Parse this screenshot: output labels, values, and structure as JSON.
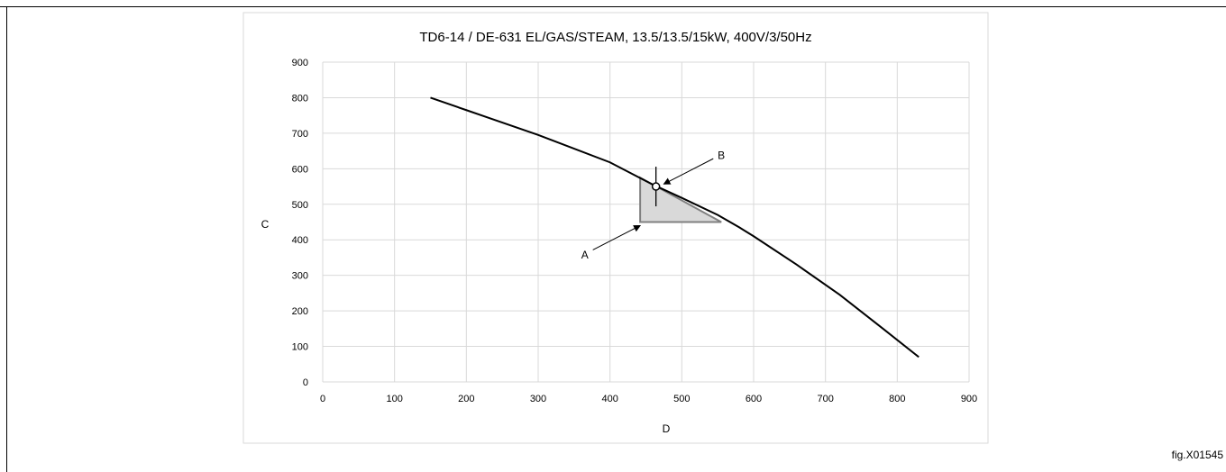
{
  "figure_label": "fig.X01545",
  "chart_data": {
    "type": "line",
    "title": "TD6-14 / DE-631 EL/GAS/STEAM, 13.5/13.5/15kW, 400V/3/50Hz",
    "xlabel": "D",
    "ylabel": "C",
    "xlim": [
      0,
      900
    ],
    "ylim": [
      0,
      900
    ],
    "x_ticks": [
      0,
      100,
      200,
      300,
      400,
      500,
      600,
      700,
      800,
      900
    ],
    "y_ticks": [
      0,
      100,
      200,
      300,
      400,
      500,
      600,
      700,
      800,
      900
    ],
    "grid": true,
    "legend": "none",
    "series": [
      {
        "x": [
          150,
          200,
          300,
          400,
          460,
          500,
          550,
          580,
          600,
          660,
          720,
          780,
          830
        ],
        "y": [
          800,
          765,
          695,
          618,
          555,
          518,
          470,
          435,
          410,
          330,
          245,
          150,
          70
        ]
      }
    ],
    "shaded_region": {
      "polygon": [
        [
          442,
          575
        ],
        [
          442,
          450
        ],
        [
          555,
          450
        ]
      ],
      "color": "#d9d9d9"
    },
    "marker": {
      "x": 464,
      "y": 550
    },
    "annotations": [
      {
        "text": "A",
        "x": 365,
        "y": 360,
        "arrow_to": [
          442,
          440
        ]
      },
      {
        "text": "B",
        "x": 555,
        "y": 640,
        "arrow_to": [
          475,
          557
        ]
      }
    ],
    "colors": {
      "line": "#000000",
      "grid": "#d9d9d9",
      "shaded": "#d9d9d9",
      "shaded_edge": "#808080"
    }
  }
}
